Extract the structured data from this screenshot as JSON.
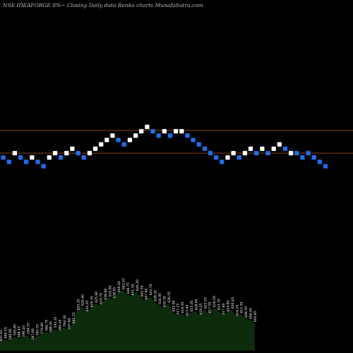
{
  "header": {
    "title": "NSE IDEAFORGE 8%~  Closing Daily data  Renko  charts MunafaSutra.com"
  },
  "colors": {
    "background": "#000000",
    "up_brick": "#ffffff",
    "down_brick": "#1e6ee8",
    "reference_line": "#8b4513",
    "volume_fill": "#0b2b0b",
    "volume_label": "#ffffff"
  },
  "chart_data": {
    "type": "renko",
    "bricks": [
      {
        "d": "down",
        "lvl": 0
      },
      {
        "d": "down",
        "lvl": -1
      },
      {
        "d": "up",
        "lvl": 1
      },
      {
        "d": "down",
        "lvl": 0
      },
      {
        "d": "down",
        "lvl": -1
      },
      {
        "d": "up",
        "lvl": 0
      },
      {
        "d": "down",
        "lvl": -1
      },
      {
        "d": "down",
        "lvl": -2
      },
      {
        "d": "up",
        "lvl": 0
      },
      {
        "d": "up",
        "lvl": 1
      },
      {
        "d": "down",
        "lvl": 0
      },
      {
        "d": "up",
        "lvl": 1
      },
      {
        "d": "up",
        "lvl": 2
      },
      {
        "d": "down",
        "lvl": 1
      },
      {
        "d": "down",
        "lvl": 0
      },
      {
        "d": "up",
        "lvl": 1
      },
      {
        "d": "up",
        "lvl": 2
      },
      {
        "d": "up",
        "lvl": 3
      },
      {
        "d": "up",
        "lvl": 4
      },
      {
        "d": "up",
        "lvl": 5
      },
      {
        "d": "down",
        "lvl": 4
      },
      {
        "d": "down",
        "lvl": 3
      },
      {
        "d": "up",
        "lvl": 4
      },
      {
        "d": "up",
        "lvl": 5
      },
      {
        "d": "up",
        "lvl": 6
      },
      {
        "d": "up",
        "lvl": 7
      },
      {
        "d": "down",
        "lvl": 6
      },
      {
        "d": "down",
        "lvl": 5
      },
      {
        "d": "up",
        "lvl": 6
      },
      {
        "d": "down",
        "lvl": 5
      },
      {
        "d": "up",
        "lvl": 6
      },
      {
        "d": "up",
        "lvl": 6
      },
      {
        "d": "down",
        "lvl": 5
      },
      {
        "d": "down",
        "lvl": 4
      },
      {
        "d": "down",
        "lvl": 3
      },
      {
        "d": "down",
        "lvl": 2
      },
      {
        "d": "down",
        "lvl": 1
      },
      {
        "d": "down",
        "lvl": 0
      },
      {
        "d": "down",
        "lvl": -1
      },
      {
        "d": "up",
        "lvl": 0
      },
      {
        "d": "up",
        "lvl": 1
      },
      {
        "d": "down",
        "lvl": 0
      },
      {
        "d": "up",
        "lvl": 1
      },
      {
        "d": "up",
        "lvl": 2
      },
      {
        "d": "down",
        "lvl": 1
      },
      {
        "d": "up",
        "lvl": 2
      },
      {
        "d": "down",
        "lvl": 1
      },
      {
        "d": "up",
        "lvl": 2
      },
      {
        "d": "up",
        "lvl": 3
      },
      {
        "d": "down",
        "lvl": 2
      },
      {
        "d": "up",
        "lvl": 1
      },
      {
        "d": "down",
        "lvl": 1
      },
      {
        "d": "down",
        "lvl": 0
      },
      {
        "d": "down",
        "lvl": 1
      },
      {
        "d": "down",
        "lvl": 0
      },
      {
        "d": "down",
        "lvl": -1
      },
      {
        "d": "down",
        "lvl": -2
      }
    ],
    "reference_levels": [
      5.2,
      0
    ],
    "volume_labels": [
      "605.65",
      "600.55",
      "596.85",
      "593.85",
      "588.45",
      "590.10",
      "594.55",
      "587.60",
      "583.55",
      "579.60",
      "584.75",
      "588.05",
      "593.35",
      "589.40",
      "594.30",
      "597.60",
      "601.55",
      "625.25",
      "629.40",
      "634.25",
      "629.35",
      "625.90",
      "633.70",
      "638.80",
      "632.90",
      "638.45",
      "640.20",
      "643.55",
      "648.75",
      "651.30",
      "646.20",
      "642.50",
      "647.60",
      "643.70",
      "638.35",
      "634.95",
      "630.30",
      "626.55",
      "622.60",
      "617.25",
      "619.30",
      "613.40",
      "615.05",
      "618.85",
      "619.25",
      "622.55",
      "617.50",
      "620.20",
      "623.70",
      "617.60",
      "614.85",
      "620.40",
      "616.25",
      "611.30",
      "608.50",
      "604.65",
      "601.85"
    ],
    "volume_values": [
      10,
      14,
      12,
      18,
      15,
      16,
      20,
      12,
      18,
      20,
      24,
      22,
      28,
      24,
      30,
      26,
      34,
      52,
      58,
      50,
      56,
      62,
      60,
      66,
      70,
      68,
      76,
      80,
      74,
      72,
      78,
      70,
      66,
      72,
      64,
      60,
      56,
      62,
      50,
      46,
      48,
      44,
      50,
      52,
      46,
      54,
      48,
      56,
      52,
      46,
      50,
      54,
      44,
      48,
      42,
      40,
      36
    ]
  }
}
